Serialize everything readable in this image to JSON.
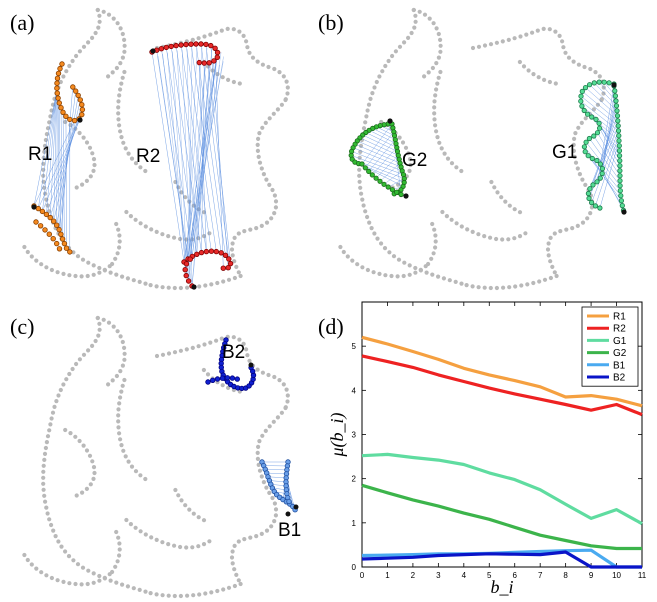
{
  "panels": {
    "a": {
      "letter": "(a)",
      "labels": [
        "R1",
        "R2"
      ]
    },
    "b": {
      "letter": "(b)",
      "labels": [
        "G2",
        "G1"
      ]
    },
    "c": {
      "letter": "(c)",
      "labels": [
        "B2",
        "B1"
      ]
    },
    "d": {
      "letter": "(d)"
    }
  },
  "colors": {
    "outline": "#b9b9b9",
    "match_line": "#5b8fe0",
    "endpoint": "#111111",
    "R1": "#f58a1f",
    "R2": "#e82a2a",
    "G1": "#55dd95",
    "G2": "#33bb33",
    "B1": "#6a9fe8",
    "B2": "#1020d0"
  },
  "chart_data": {
    "type": "line",
    "xlabel": "b_i",
    "ylabel": "μ(b_i)",
    "xlim": [
      0,
      11
    ],
    "ylim": [
      0,
      6
    ],
    "x_ticks": [
      0,
      1,
      2,
      3,
      4,
      5,
      6,
      7,
      8,
      9,
      10,
      11
    ],
    "y_ticks": [
      0,
      1,
      2,
      3,
      4,
      5
    ],
    "legend_position": "top-right",
    "x": [
      0,
      1,
      2,
      3,
      4,
      5,
      6,
      7,
      8,
      9,
      10,
      11
    ],
    "series": [
      {
        "name": "R1",
        "color": "#f5a040",
        "values": [
          5.2,
          5.05,
          4.88,
          4.7,
          4.5,
          4.35,
          4.22,
          4.08,
          3.85,
          3.88,
          3.8,
          3.65
        ]
      },
      {
        "name": "R2",
        "color": "#ee2222",
        "values": [
          4.78,
          4.65,
          4.52,
          4.35,
          4.2,
          4.05,
          3.92,
          3.8,
          3.68,
          3.55,
          3.68,
          3.45
        ]
      },
      {
        "name": "G1",
        "color": "#5fdca0",
        "values": [
          2.52,
          2.55,
          2.48,
          2.42,
          2.32,
          2.13,
          1.98,
          1.75,
          1.42,
          1.1,
          1.3,
          0.98
        ]
      },
      {
        "name": "G2",
        "color": "#3cb44b",
        "values": [
          1.85,
          1.68,
          1.52,
          1.38,
          1.22,
          1.08,
          0.9,
          0.72,
          0.6,
          0.48,
          0.42,
          0.42
        ]
      },
      {
        "name": "B1",
        "color": "#4aaaf0",
        "values": [
          0.26,
          0.27,
          0.28,
          0.3,
          0.3,
          0.31,
          0.33,
          0.35,
          0.37,
          0.38,
          0.0,
          0.0
        ]
      },
      {
        "name": "B2",
        "color": "#0a14c8",
        "values": [
          0.18,
          0.2,
          0.22,
          0.26,
          0.28,
          0.3,
          0.29,
          0.28,
          0.34,
          0.0,
          0.0,
          0.0
        ]
      }
    ]
  }
}
